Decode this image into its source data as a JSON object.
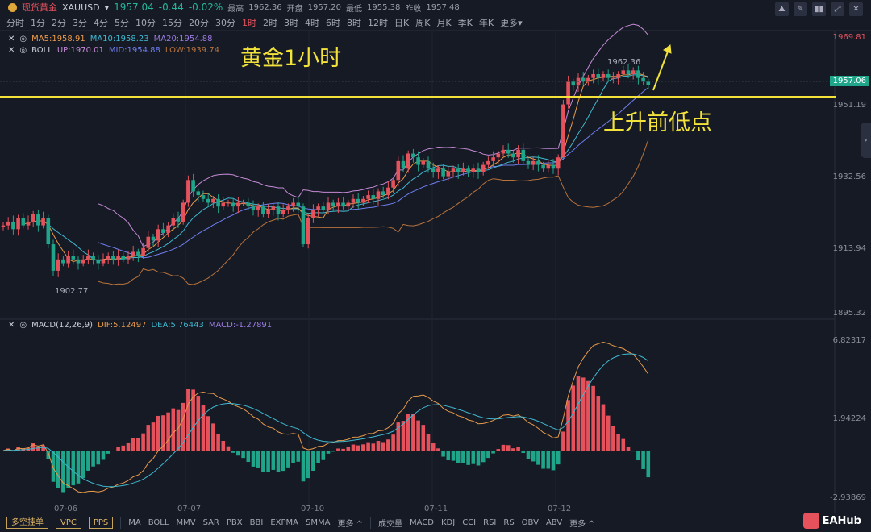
{
  "header": {
    "name": "现货黄金",
    "symbol": "XAUUSD",
    "price": "1957.04",
    "change": "-0.44",
    "change_pct": "-0.02%",
    "high_label": "最高",
    "high": "1962.36",
    "open_label": "开盘",
    "open": "1957.20",
    "low_label": "最低",
    "low": "1955.38",
    "prev_label": "昨收",
    "prev": "1957.48"
  },
  "timeframes": [
    "分时",
    "1分",
    "2分",
    "3分",
    "4分",
    "5分",
    "10分",
    "15分",
    "20分",
    "30分",
    "1时",
    "2时",
    "3时",
    "4时",
    "6时",
    "8时",
    "12时",
    "日K",
    "周K",
    "月K",
    "季K",
    "年K",
    "更多▾"
  ],
  "active_timeframe": "1时",
  "toolbar_icons": [
    "draw-icon",
    "pen-icon",
    "compare-icon",
    "fullscreen-icon",
    "close-icon"
  ],
  "legend_ma": {
    "ma5": "MA5:1958.91",
    "ma10": "MA10:1958.23",
    "ma20": "MA20:1954.88"
  },
  "legend_boll": {
    "name": "BOLL",
    "up": "UP:1970.01",
    "mid": "MID:1954.88",
    "low": "LOW:1939.74"
  },
  "legend_macd": {
    "name": "MACD(12,26,9)",
    "dif": "DIF:5.12497",
    "dea": "DEA:5.76443",
    "macd": "MACD:-1.27891"
  },
  "price_axis": [
    "1969.81",
    "1951.19",
    "1932.56",
    "1913.94",
    "1895.32"
  ],
  "current_price_tag": "1957.06",
  "macd_axis": [
    "6.82317",
    "1.94224",
    "-2.93869"
  ],
  "dates": [
    "07-06",
    "07-07",
    "07-10",
    "07-11",
    "07-12"
  ],
  "marks": {
    "high": "1962.36",
    "low": "1902.77"
  },
  "annotations": {
    "title": "黄金1小时",
    "note": "上升前低点"
  },
  "bottom": {
    "boxes": [
      "多空挂单",
      "VPC",
      "PPS"
    ],
    "main_ind": [
      "MA",
      "BOLL",
      "MMV",
      "SAR",
      "PBX",
      "BBI",
      "EXPMA",
      "SMMA",
      "更多 ^"
    ],
    "sub_ind": [
      "成交量",
      "MACD",
      "KDJ",
      "CCI",
      "RSI",
      "RS",
      "OBV",
      "ABV",
      "更多 ^"
    ],
    "brand": "EAHub"
  },
  "colors": {
    "up": "#e5525c",
    "down": "#1fa58a",
    "ma5": "#e89a4a",
    "ma10": "#3fb8d0",
    "ma20": "#9a7be0",
    "boll_up": "#c58ad6",
    "boll_mid": "#6f7ff0",
    "boll_low": "#b8733c",
    "annotation": "#f2e23a"
  },
  "chart_data": {
    "type": "candlestick",
    "interval": "1时",
    "last": 1957.06,
    "closes": [
      1920,
      1921,
      1919,
      1922,
      1920,
      1921,
      1923,
      1920,
      1922,
      1915,
      1908,
      1911,
      1910,
      1912,
      1911,
      1910,
      1911,
      1912,
      1911,
      1910,
      1911,
      1912,
      1911,
      1912,
      1911,
      1912,
      1913,
      1912,
      1914,
      1917,
      1916,
      1919,
      1918,
      1920,
      1922,
      1921,
      1926,
      1932,
      1929,
      1928,
      1927,
      1926,
      1927,
      1925,
      1926,
      1926,
      1925,
      1926,
      1926,
      1925,
      1924,
      1925,
      1923,
      1924,
      1925,
      1923,
      1924,
      1925,
      1926,
      1925,
      1915,
      1922,
      1924,
      1925,
      1924,
      1926,
      1925,
      1926,
      1925,
      1926,
      1927,
      1926,
      1927,
      1928,
      1927,
      1929,
      1928,
      1930,
      1932,
      1937,
      1935,
      1939,
      1938,
      1936,
      1937,
      1935,
      1934,
      1935,
      1933,
      1934,
      1935,
      1934,
      1935,
      1934,
      1935,
      1934,
      1936,
      1937,
      1938,
      1939,
      1940,
      1939,
      1938,
      1940,
      1937,
      1936,
      1937,
      1936,
      1935,
      1936,
      1935,
      1938,
      1952,
      1958,
      1957,
      1959,
      1958,
      1959,
      1960,
      1959,
      1960,
      1959,
      1959,
      1960,
      1961,
      1960,
      1961,
      1959,
      1958,
      1957.06
    ]
  }
}
